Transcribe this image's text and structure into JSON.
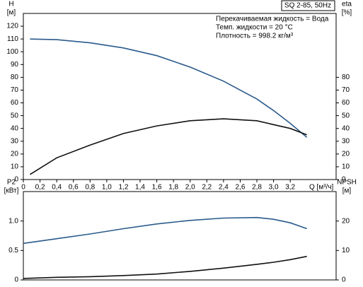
{
  "chart_data": [
    {
      "type": "line",
      "title": "SQ 2-85, 50Hz",
      "annotations": [
        "Перекачиваемая жидкость = Вода",
        "Темп. жидкости = 20 °C",
        "Плотность = 998.2 кг/м³"
      ],
      "ylabel": "H",
      "yunit": "[м]",
      "y2label": "eta",
      "y2unit": "[%]",
      "xlabel": "Q [м³/ч]",
      "x": [
        0.08,
        0.4,
        0.8,
        1.2,
        1.6,
        2.0,
        2.4,
        2.8,
        3.0,
        3.2,
        3.4
      ],
      "xlim": [
        0,
        3.75
      ],
      "xticks": [
        0,
        {
          "value": 0.2,
          "label": "0,2"
        },
        {
          "value": 0.4,
          "label": "0,4"
        },
        {
          "value": 0.6,
          "label": "0,6"
        },
        {
          "value": 0.8,
          "label": "0,8"
        },
        {
          "value": 1.0,
          "label": "1,0"
        },
        {
          "value": 1.2,
          "label": "1,2"
        },
        {
          "value": 1.4,
          "label": "1,4"
        },
        {
          "value": 1.6,
          "label": "1,6"
        },
        {
          "value": 1.8,
          "label": "1,8"
        },
        {
          "value": 2.0,
          "label": "2,0"
        },
        {
          "value": 2.2,
          "label": "2,2"
        },
        {
          "value": 2.4,
          "label": "2,4"
        },
        {
          "value": 2.6,
          "label": "2,6"
        },
        {
          "value": 2.8,
          "label": "2,8"
        },
        {
          "value": 3.0,
          "label": "3,0"
        },
        {
          "value": 3.2,
          "label": "3,2"
        }
      ],
      "ylim": [
        0,
        130
      ],
      "yticks": [
        0,
        10,
        20,
        30,
        40,
        50,
        60,
        70,
        80,
        90,
        100,
        110,
        120
      ],
      "y2lim": [
        0,
        130
      ],
      "y2ticks": [
        0,
        10,
        20,
        30,
        40,
        50,
        60,
        70,
        80
      ],
      "series": [
        {
          "name": "H",
          "color": "#2a5a8c",
          "values": [
            110,
            109.5,
            107,
            103,
            97,
            88,
            77,
            63,
            54,
            44,
            33
          ]
        },
        {
          "name": "eta",
          "color": "#111111",
          "axis": "y2",
          "values": [
            4,
            17,
            27,
            36,
            42,
            46,
            47.5,
            46,
            43,
            40,
            35
          ]
        }
      ]
    },
    {
      "type": "line",
      "ylabel": "P2",
      "yunit": "[кВт]",
      "y2label": "NPSH",
      "y2unit": "[м]",
      "x": [
        0,
        0.4,
        0.8,
        1.2,
        1.6,
        2.0,
        2.4,
        2.8,
        3.0,
        3.2,
        3.4
      ],
      "xlim": [
        0,
        3.75
      ],
      "ylim": [
        0,
        1.5
      ],
      "yticks": [
        0,
        {
          "value": 0.5,
          "label": "0.5"
        },
        {
          "value": 1.0,
          "label": "1.0"
        }
      ],
      "y2lim": [
        0,
        30
      ],
      "y2ticks": [
        0,
        10,
        20
      ],
      "series": [
        {
          "name": "P2",
          "color": "#2a5a8c",
          "values": [
            0.62,
            0.7,
            0.78,
            0.87,
            0.95,
            1.01,
            1.05,
            1.06,
            1.03,
            0.97,
            0.87
          ]
        },
        {
          "name": "NPSH",
          "color": "#111111",
          "axis": "y2",
          "values": [
            0.5,
            0.9,
            1.1,
            1.5,
            2,
            2.9,
            4,
            5.3,
            6,
            6.9,
            8
          ]
        }
      ]
    }
  ]
}
